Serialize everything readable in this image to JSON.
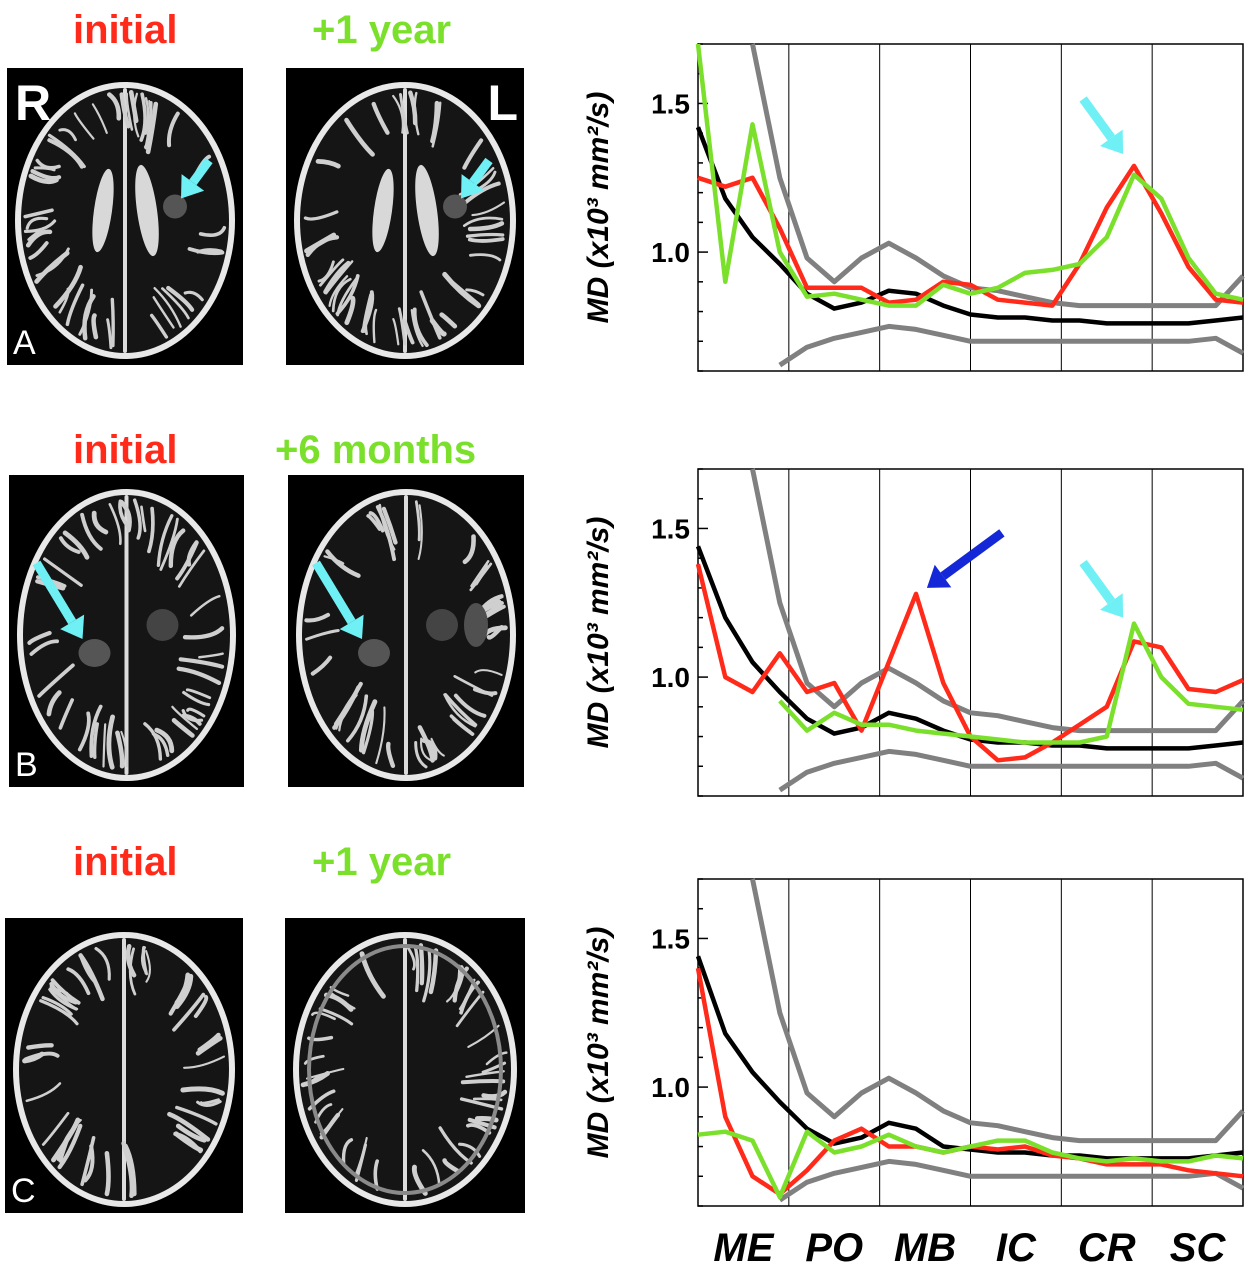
{
  "panels": [
    {
      "id": "A",
      "left_label": "initial",
      "right_label": "+1 year",
      "corner_label": "A",
      "side_left": "R",
      "side_right": "L"
    },
    {
      "id": "B",
      "left_label": "initial",
      "right_label": "+6 months",
      "corner_label": "B"
    },
    {
      "id": "C",
      "left_label": "initial",
      "right_label": "+1 year",
      "corner_label": "C"
    }
  ],
  "colors": {
    "initial": "#ff2a1a",
    "followup": "#7be02b",
    "arrow_light": "#6ef0f5",
    "arrow_dark": "#1428d8",
    "mean": "#000000",
    "range": "#808080"
  },
  "chart_data": [
    {
      "type": "line",
      "panel": "A",
      "ylabel": "MD (x10³ mm²/s)",
      "ylim": [
        0.6,
        1.7
      ],
      "yticks": [
        1.0,
        1.5
      ],
      "categories": [
        "ME",
        "PO",
        "MB",
        "IC",
        "CR",
        "SC"
      ],
      "x": [
        0,
        0.05,
        0.1,
        0.15,
        0.2,
        0.25,
        0.3,
        0.35,
        0.4,
        0.45,
        0.5,
        0.55,
        0.6,
        0.65,
        0.7,
        0.75,
        0.8,
        0.85,
        0.9,
        0.95,
        1
      ],
      "series": [
        {
          "role": "upper",
          "values": [
            null,
            null,
            1.7,
            1.25,
            0.98,
            0.9,
            0.98,
            1.03,
            0.98,
            0.92,
            0.88,
            0.87,
            0.85,
            0.83,
            0.82,
            0.82,
            0.82,
            0.82,
            0.82,
            0.82,
            0.92
          ]
        },
        {
          "role": "mean",
          "values": [
            1.42,
            1.18,
            1.05,
            0.96,
            0.86,
            0.81,
            0.83,
            0.87,
            0.86,
            0.82,
            0.79,
            0.78,
            0.78,
            0.77,
            0.77,
            0.76,
            0.76,
            0.76,
            0.76,
            0.77,
            0.78
          ]
        },
        {
          "role": "lower",
          "values": [
            null,
            null,
            null,
            0.62,
            0.68,
            0.71,
            0.73,
            0.75,
            0.74,
            0.72,
            0.7,
            0.7,
            0.7,
            0.7,
            0.7,
            0.7,
            0.7,
            0.7,
            0.7,
            0.71,
            0.66
          ]
        },
        {
          "role": "initial",
          "values": [
            1.25,
            1.22,
            1.25,
            1.08,
            0.88,
            0.88,
            0.88,
            0.83,
            0.84,
            0.9,
            0.89,
            0.84,
            0.83,
            0.82,
            0.96,
            1.15,
            1.29,
            1.13,
            0.95,
            0.84,
            0.83
          ]
        },
        {
          "role": "followup",
          "values": [
            1.7,
            0.9,
            1.43,
            1.0,
            0.85,
            0.86,
            0.84,
            0.82,
            0.82,
            0.89,
            0.86,
            0.88,
            0.93,
            0.94,
            0.96,
            1.05,
            1.26,
            1.18,
            0.98,
            0.86,
            0.84
          ]
        }
      ]
    },
    {
      "type": "line",
      "panel": "B",
      "ylabel": "MD (x10³ mm²/s)",
      "ylim": [
        0.6,
        1.7
      ],
      "yticks": [
        1.0,
        1.5
      ],
      "categories": [
        "ME",
        "PO",
        "MB",
        "IC",
        "CR",
        "SC"
      ],
      "x": [
        0,
        0.05,
        0.1,
        0.15,
        0.2,
        0.25,
        0.3,
        0.35,
        0.4,
        0.45,
        0.5,
        0.55,
        0.6,
        0.65,
        0.7,
        0.75,
        0.8,
        0.85,
        0.9,
        0.95,
        1
      ],
      "series": [
        {
          "role": "upper",
          "values": [
            null,
            null,
            1.7,
            1.25,
            0.98,
            0.9,
            0.98,
            1.03,
            0.98,
            0.92,
            0.88,
            0.87,
            0.85,
            0.83,
            0.82,
            0.82,
            0.82,
            0.82,
            0.82,
            0.82,
            0.92
          ]
        },
        {
          "role": "mean",
          "values": [
            1.44,
            1.2,
            1.05,
            0.95,
            0.86,
            0.81,
            0.83,
            0.88,
            0.86,
            0.82,
            0.79,
            0.78,
            0.78,
            0.77,
            0.77,
            0.76,
            0.76,
            0.76,
            0.76,
            0.77,
            0.78
          ]
        },
        {
          "role": "lower",
          "values": [
            null,
            null,
            null,
            0.62,
            0.68,
            0.71,
            0.73,
            0.75,
            0.74,
            0.72,
            0.7,
            0.7,
            0.7,
            0.7,
            0.7,
            0.7,
            0.7,
            0.7,
            0.7,
            0.71,
            0.66
          ]
        },
        {
          "role": "initial",
          "values": [
            1.38,
            1.0,
            0.95,
            1.08,
            0.95,
            0.98,
            0.82,
            1.05,
            1.28,
            0.98,
            0.8,
            0.72,
            0.73,
            0.78,
            0.84,
            0.9,
            1.12,
            1.1,
            0.96,
            0.95,
            0.99
          ]
        },
        {
          "role": "followup",
          "values": [
            null,
            null,
            null,
            0.92,
            0.82,
            0.88,
            0.84,
            0.84,
            0.82,
            0.81,
            0.8,
            0.79,
            0.78,
            0.78,
            0.78,
            0.8,
            1.18,
            1.0,
            0.91,
            0.9,
            0.89
          ]
        }
      ]
    },
    {
      "type": "line",
      "panel": "C",
      "ylabel": "MD (x10³ mm²/s)",
      "ylim": [
        0.6,
        1.7
      ],
      "yticks": [
        1.0,
        1.5
      ],
      "categories": [
        "ME",
        "PO",
        "MB",
        "IC",
        "CR",
        "SC"
      ],
      "x": [
        0,
        0.05,
        0.1,
        0.15,
        0.2,
        0.25,
        0.3,
        0.35,
        0.4,
        0.45,
        0.5,
        0.55,
        0.6,
        0.65,
        0.7,
        0.75,
        0.8,
        0.85,
        0.9,
        0.95,
        1
      ],
      "series": [
        {
          "role": "upper",
          "values": [
            null,
            null,
            1.7,
            1.25,
            0.98,
            0.9,
            0.98,
            1.03,
            0.98,
            0.92,
            0.88,
            0.87,
            0.85,
            0.83,
            0.82,
            0.82,
            0.82,
            0.82,
            0.82,
            0.82,
            0.92
          ]
        },
        {
          "role": "mean",
          "values": [
            1.44,
            1.18,
            1.05,
            0.95,
            0.86,
            0.81,
            0.83,
            0.88,
            0.86,
            0.8,
            0.79,
            0.78,
            0.78,
            0.77,
            0.77,
            0.76,
            0.76,
            0.76,
            0.76,
            0.77,
            0.78
          ]
        },
        {
          "role": "lower",
          "values": [
            null,
            null,
            null,
            0.62,
            0.68,
            0.71,
            0.73,
            0.75,
            0.74,
            0.72,
            0.7,
            0.7,
            0.7,
            0.7,
            0.7,
            0.7,
            0.7,
            0.7,
            0.7,
            0.71,
            0.66
          ]
        },
        {
          "role": "initial",
          "values": [
            1.4,
            0.9,
            0.7,
            0.64,
            0.72,
            0.82,
            0.86,
            0.8,
            0.8,
            0.78,
            0.8,
            0.79,
            0.8,
            0.77,
            0.76,
            0.74,
            0.74,
            0.74,
            0.72,
            0.71,
            0.7
          ]
        },
        {
          "role": "followup",
          "values": [
            0.84,
            0.85,
            0.82,
            0.63,
            0.85,
            0.78,
            0.8,
            0.84,
            0.8,
            0.78,
            0.8,
            0.82,
            0.82,
            0.78,
            0.76,
            0.75,
            0.76,
            0.75,
            0.75,
            0.77,
            0.76
          ]
        }
      ]
    }
  ]
}
